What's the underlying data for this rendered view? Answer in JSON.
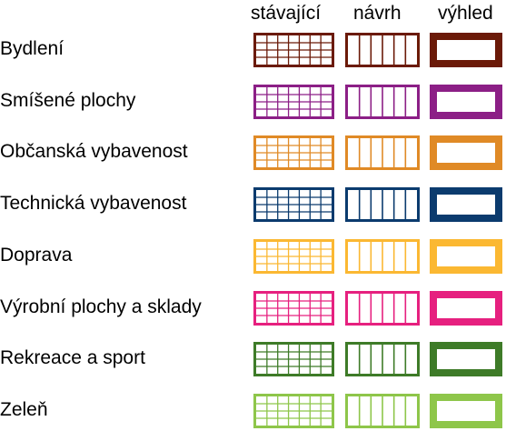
{
  "legend": {
    "columns": [
      {
        "key": "existing",
        "label": "stávající"
      },
      {
        "key": "proposal",
        "label": "návrh"
      },
      {
        "key": "outlook",
        "label": "výhled"
      }
    ],
    "rows": [
      {
        "label": "Bydlení",
        "color": "#6b1a08"
      },
      {
        "label": "Smíšené plochy",
        "color": "#8c1f86"
      },
      {
        "label": "Občanská vybavenost",
        "color": "#e08a26"
      },
      {
        "label": "Technická vybavenost",
        "color": "#0b3b6e"
      },
      {
        "label": "Doprava",
        "color": "#fbb832"
      },
      {
        "label": "Výrobní plochy a sklady",
        "color": "#e6207f"
      },
      {
        "label": "Rekreace a sport",
        "color": "#3e7b28"
      },
      {
        "label": "Zeleň",
        "color": "#8ec64a"
      }
    ]
  }
}
